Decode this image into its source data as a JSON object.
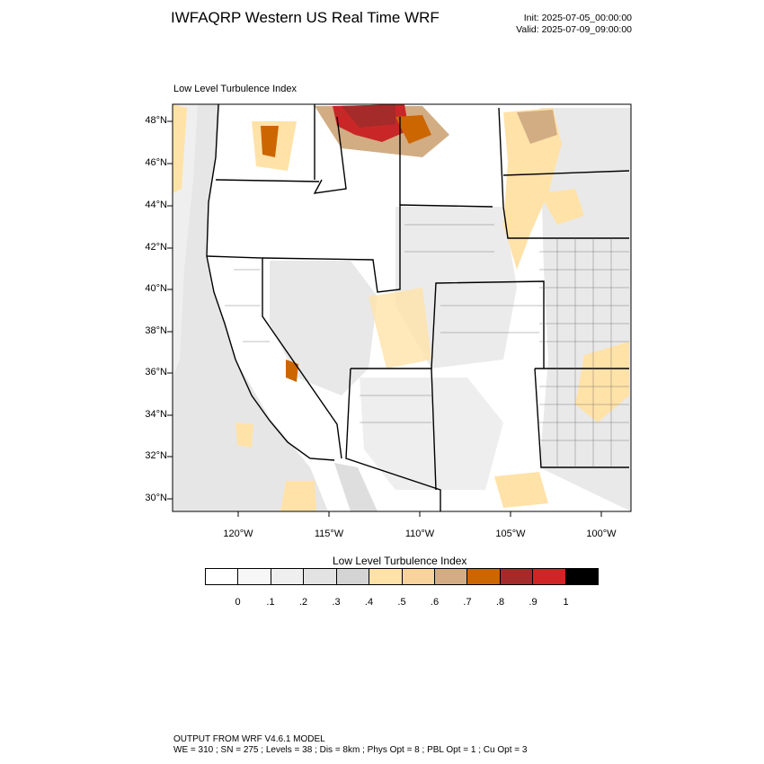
{
  "header": {
    "title": "IWFAQRP Western US Real Time WRF",
    "init": "Init: 2025-07-05_00:00:00",
    "valid": "Valid: 2025-07-09_09:00:00"
  },
  "map": {
    "field_label": "Low Level Turbulence Index",
    "lat_ticks": [
      "48°N",
      "46°N",
      "44°N",
      "42°N",
      "40°N",
      "38°N",
      "36°N",
      "34°N",
      "32°N",
      "30°N"
    ],
    "lon_ticks": [
      "120°W",
      "115°W",
      "110°W",
      "105°W",
      "100°W"
    ],
    "lat_range": [
      29.5,
      48.8
    ],
    "lon_range": [
      -123.5,
      -98.3
    ]
  },
  "colorbar": {
    "title": "Low Level Turbulence Index",
    "labels": [
      "0",
      ".1",
      ".2",
      ".3",
      ".4",
      ".5",
      ".6",
      ".7",
      ".8",
      ".9",
      "1"
    ],
    "colors": [
      "#ffffff",
      "#f7f7f7",
      "#efefef",
      "#e3e3e3",
      "#d4d4d4",
      "#ffe2a8",
      "#f9d39c",
      "#d2ad84",
      "#cc6600",
      "#a52a2a",
      "#d02427",
      "#000000"
    ]
  },
  "footer": {
    "line1": "OUTPUT FROM WRF V4.6.1 MODEL",
    "line2": "WE = 310 ; SN = 275 ; Levels = 38 ; Dis = 8km ; Phys Opt = 8 ; PBL Opt = 1 ; Cu Opt = 3"
  }
}
